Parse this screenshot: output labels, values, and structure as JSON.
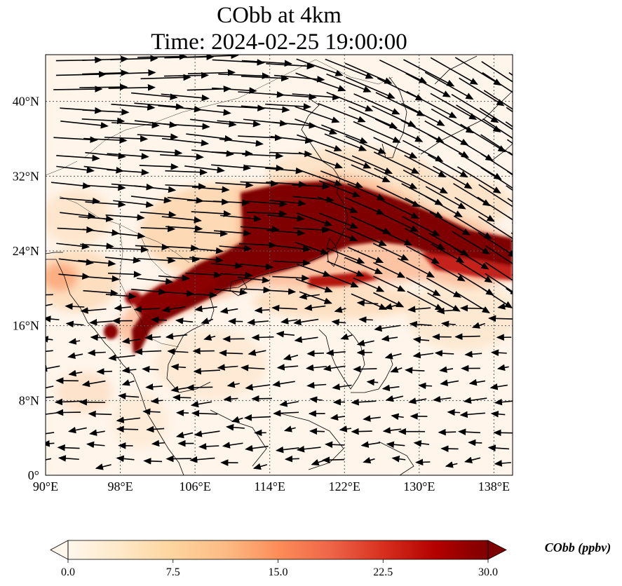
{
  "title_line1": "CObb at 4km",
  "title_line2": "Time: 2024-02-25 19:00:00",
  "map": {
    "lon_range": [
      90,
      140
    ],
    "lat_range": [
      0,
      45
    ],
    "lon_ticks": [
      "90°E",
      "98°E",
      "106°E",
      "114°E",
      "122°E",
      "130°E",
      "138°E"
    ],
    "lon_values": [
      90,
      98,
      106,
      114,
      122,
      130,
      138
    ],
    "lat_ticks": [
      "0°",
      "8°N",
      "16°N",
      "24°N",
      "32°N",
      "40°N"
    ],
    "lat_values": [
      0,
      8,
      16,
      24,
      32,
      40
    ],
    "gridlines": true,
    "field": "CObb",
    "plume_color": "#7f0000",
    "background_color": "#fff5eb"
  },
  "colorbar": {
    "label": "CObb (ppbv)",
    "ticks": [
      "0.0",
      "7.5",
      "15.0",
      "22.5",
      "30.0"
    ],
    "tick_values": [
      0,
      7.5,
      15,
      22.5,
      30
    ],
    "range": [
      0,
      30
    ],
    "colormap": "OrRd",
    "extend": "both",
    "colors": [
      "#fff7ec",
      "#fee8c8",
      "#fdd49e",
      "#fdbb84",
      "#fc8d59",
      "#ef6548",
      "#d7301f",
      "#b30000",
      "#7f0000"
    ]
  }
}
